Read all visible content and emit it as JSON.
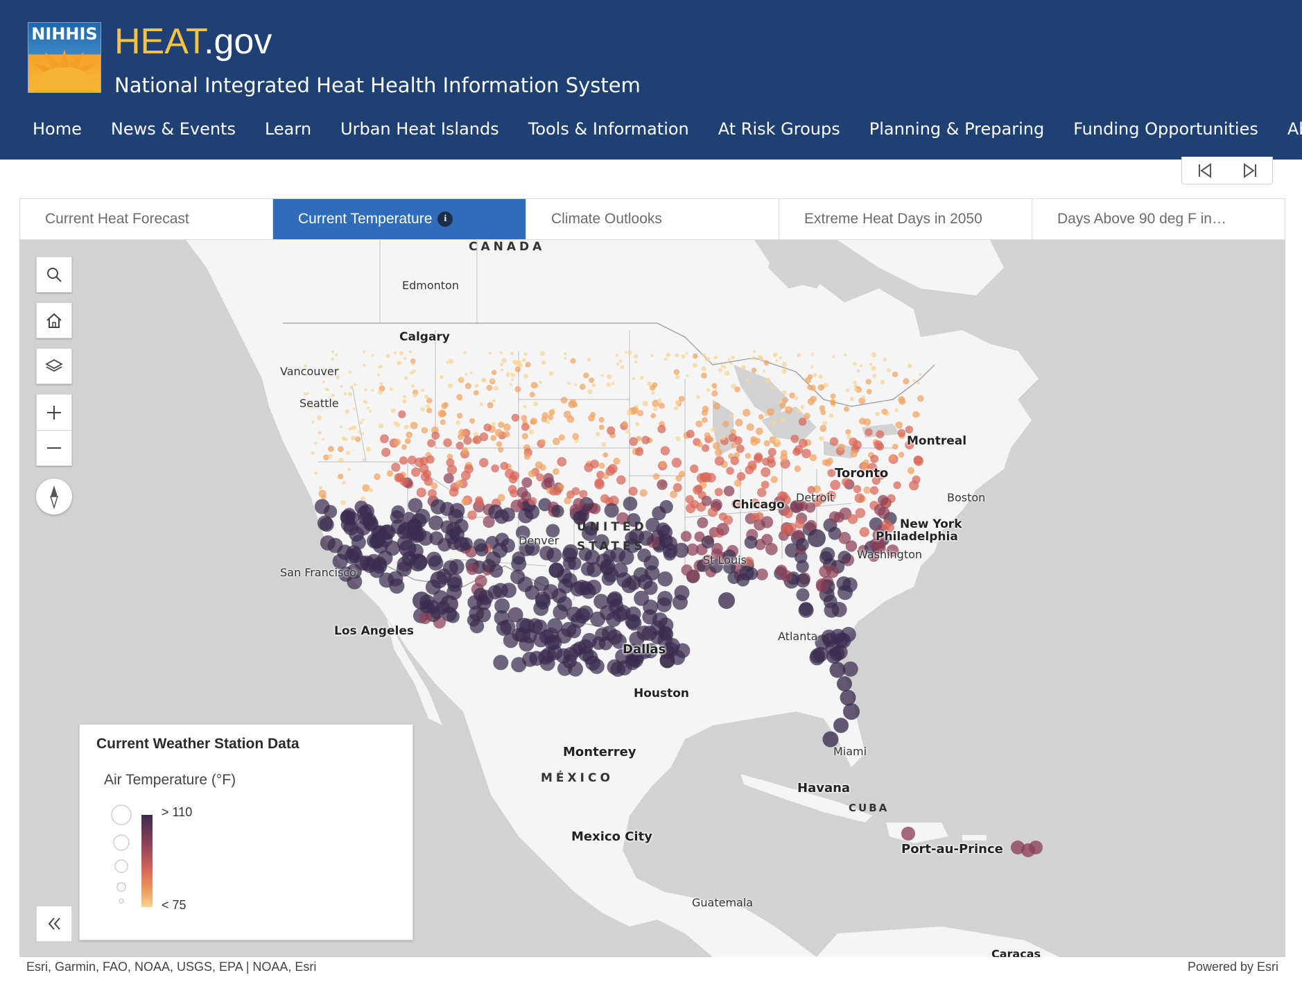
{
  "header": {
    "logo_text": "NIHHIS",
    "title_heat": "HEAT",
    "title_gov": ".gov",
    "subtitle": "National Integrated Heat Health Information System"
  },
  "nav": {
    "items": [
      "Home",
      "News & Events",
      "Learn",
      "Urban Heat Islands",
      "Tools & Information",
      "At Risk Groups",
      "Planning & Preparing",
      "Funding Opportunities",
      "About"
    ]
  },
  "tabs": [
    {
      "label": "Current Heat Forecast",
      "active": false
    },
    {
      "label": "Current Temperature",
      "active": true,
      "info_icon": "i"
    },
    {
      "label": "Climate Outlooks",
      "active": false
    },
    {
      "label": "Extreme Heat Days in 2050",
      "active": false
    },
    {
      "label": "Days Above 90 deg F in…",
      "active": false
    }
  ],
  "map": {
    "place_labels": {
      "canada": "CANADA",
      "edmonton": "Edmonton",
      "calgary": "Calgary",
      "vancouver": "Vancouver",
      "seattle": "Seattle",
      "montreal": "Montreal",
      "toronto": "Toronto",
      "detroit": "Detroit",
      "boston": "Boston",
      "chicago": "Chicago",
      "united": "UNITED",
      "states": "STATES",
      "denver": "Denver",
      "new_york": "New York",
      "philadelphia": "Philadelphia",
      "washington": "Washington",
      "san_francisco": "San Francisco",
      "st_louis": "St Louis",
      "los_angeles": "Los Angeles",
      "atlanta": "Atlanta",
      "dallas": "Dallas",
      "houston": "Houston",
      "monterrey": "Monterrey",
      "miami": "Miami",
      "mexico": "MÉXICO",
      "havana": "Havana",
      "cuba": "CUBA",
      "mexico_city": "Mexico City",
      "port_au_prince": "Port-au-Prince",
      "guatemala": "Guatemala",
      "caracas": "Caracas"
    },
    "controls": [
      "search-icon",
      "home-icon",
      "layers-icon",
      "plus-icon",
      "minus-icon",
      "compass-icon"
    ],
    "attribution_left": "Esri, Garmin, FAO, NOAA, USGS, EPA | NOAA, Esri",
    "attribution_right": "Powered by Esri"
  },
  "legend": {
    "title": "Current Weather Station Data",
    "field": "Air Temperature (°F)",
    "high_label": "> 110",
    "low_label": "< 75",
    "colors": [
      "#3a2c4f",
      "#8c4058",
      "#d86558",
      "#f1a461",
      "#f9d492"
    ]
  }
}
